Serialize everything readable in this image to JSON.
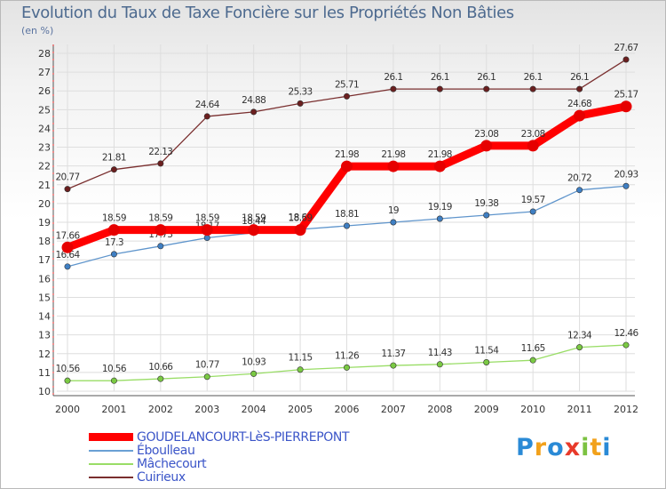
{
  "chart_data": {
    "type": "line",
    "title": "Evolution du Taux de Taxe Foncière sur les Propriétés Non Bâties",
    "unit_label": "(en %)",
    "x": [
      "2000",
      "2001",
      "2002",
      "2003",
      "2004",
      "2005",
      "2006",
      "2007",
      "2008",
      "2009",
      "2010",
      "2011",
      "2012"
    ],
    "ylim": [
      10,
      28
    ],
    "yticks": [
      "10",
      "11",
      "12",
      "13",
      "14",
      "15",
      "16",
      "17",
      "18",
      "19",
      "20",
      "21",
      "22",
      "23",
      "24",
      "25",
      "26",
      "27",
      "28"
    ],
    "series": [
      {
        "name": "Cuirieux",
        "color": "#7a2f2f",
        "marker": "#6b1f1f",
        "values": [
          20.77,
          21.81,
          22.13,
          24.64,
          24.88,
          25.33,
          25.71,
          26.1,
          26.1,
          26.1,
          26.1,
          26.1,
          27.67
        ],
        "labels": [
          "20.77",
          "21.81",
          "22.13",
          "24.64",
          "24.88",
          "25.33",
          "25.71",
          "26.1",
          "26.1",
          "26.1",
          "26.1",
          "26.1",
          "27.67"
        ]
      },
      {
        "name": "Éboulleau",
        "color": "#5f95cc",
        "marker": "#3f7fc3",
        "values": [
          16.64,
          17.3,
          17.73,
          18.17,
          18.44,
          18.62,
          18.81,
          19,
          19.19,
          19.38,
          19.57,
          20.72,
          20.93
        ],
        "labels": [
          "16.64",
          "17.3",
          "17.73",
          "18.17",
          "18.44",
          "18.62",
          "18.81",
          "19",
          "19.19",
          "19.38",
          "19.57",
          "20.72",
          "20.93"
        ]
      },
      {
        "name": "Mâchecourt",
        "color": "#99dd66",
        "marker": "#7ac943",
        "values": [
          10.56,
          10.56,
          10.66,
          10.77,
          10.93,
          11.15,
          11.26,
          11.37,
          11.43,
          11.54,
          11.65,
          12.34,
          12.46
        ],
        "labels": [
          "10.56",
          "10.56",
          "10.66",
          "10.77",
          "10.93",
          "11.15",
          "11.26",
          "11.37",
          "11.43",
          "11.54",
          "11.65",
          "12.34",
          "12.46"
        ]
      },
      {
        "name": "GOUDELANCOURT-LèS-PIERREPONT",
        "color": "#ff0000",
        "marker": "#e60000",
        "values": [
          17.66,
          18.59,
          18.59,
          18.59,
          18.59,
          18.59,
          21.98,
          21.98,
          21.98,
          23.08,
          23.08,
          24.68,
          25.17
        ],
        "labels": [
          "17.66",
          "18.59",
          "18.59",
          "18.59",
          "18.59",
          "18.59",
          "21.98",
          "21.98",
          "21.98",
          "23.08",
          "23.08",
          "24.68",
          "25.17"
        ]
      }
    ]
  },
  "legend": [
    {
      "label": "GOUDELANCOURT-LèS-PIERREPONT",
      "color": "#ff0000",
      "weight": "thick"
    },
    {
      "label": "Éboulleau",
      "color": "#6aa0d4",
      "weight": "thin"
    },
    {
      "label": "Mâchecourt",
      "color": "#99dd66",
      "weight": "thin"
    },
    {
      "label": "Cuirieux",
      "color": "#7a2f2f",
      "weight": "thin"
    }
  ],
  "logo": {
    "letters": [
      "P",
      "r",
      "o",
      "x",
      "i",
      "t",
      "i"
    ],
    "colors": [
      "#2a8ad6",
      "#f2a11b",
      "#2a8ad6",
      "#e83a2a",
      "#7cc242",
      "#f2a11b",
      "#2a8ad6"
    ]
  }
}
